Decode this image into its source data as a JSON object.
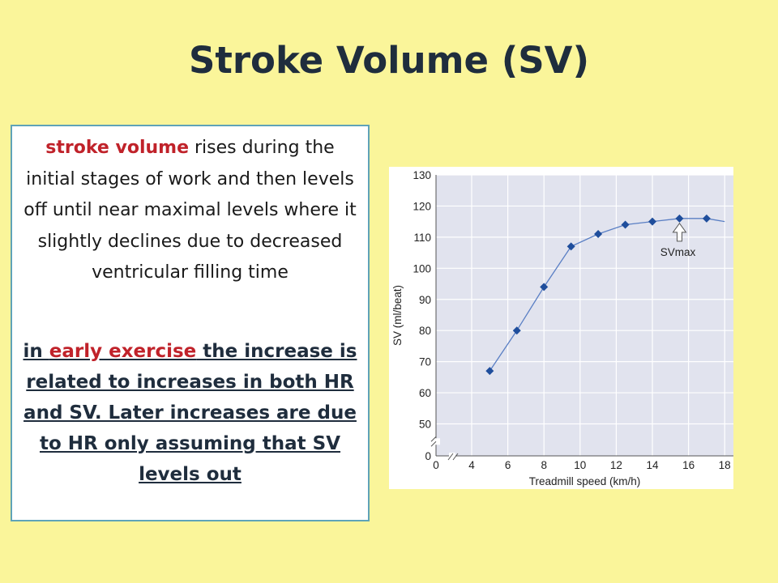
{
  "slide": {
    "title": "Stroke Volume (SV)"
  },
  "text_box": {
    "p1_highlight": "stroke volume",
    "p1_rest": " rises during the initial stages of work and then levels off until near maximal levels where it slightly declines due to decreased ventricular filling time",
    "p2_prefix": "in ",
    "p2_highlight": "early exercise",
    "p2_rest": " the increase is related to increases in both HR and SV. Later increases are due to HR only assuming that SV levels out"
  },
  "colors": {
    "background": "#faf59a",
    "highlight_red": "#c0222a",
    "series_line": "#5a7fc4",
    "marker": "#1f4e9c",
    "plot_bg": "#e1e3ee",
    "box_border": "#5fa3b8"
  },
  "chart_data": {
    "type": "line",
    "title": "",
    "xlabel": "Treadmill speed (km/h)",
    "ylabel": "SV (ml/beat)",
    "xlim": [
      0,
      18
    ],
    "ylim": [
      0,
      130
    ],
    "y_axis_break": true,
    "x_axis_break": true,
    "xticks": [
      0,
      4,
      6,
      8,
      10,
      12,
      14,
      16,
      18
    ],
    "yticks": [
      0,
      50,
      60,
      70,
      80,
      90,
      100,
      110,
      120,
      130
    ],
    "grid": true,
    "series": [
      {
        "points": [
          [
            5,
            67
          ],
          [
            6.5,
            80
          ],
          [
            8,
            94
          ],
          [
            9.5,
            107
          ],
          [
            11,
            111
          ],
          [
            12.5,
            114
          ],
          [
            14,
            115
          ],
          [
            15.5,
            116
          ],
          [
            17,
            116
          ]
        ],
        "line_end": [
          18,
          115
        ],
        "marker": "diamond"
      }
    ],
    "annotations": [
      {
        "text": "SVmax",
        "x": 15.5,
        "y": 116,
        "arrow": "up"
      }
    ]
  }
}
